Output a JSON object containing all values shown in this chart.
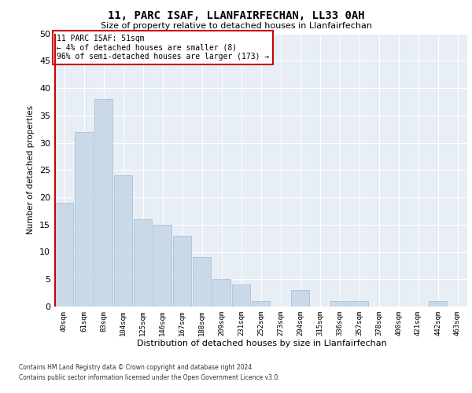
{
  "title": "11, PARC ISAF, LLANFAIRFECHAN, LL33 0AH",
  "subtitle": "Size of property relative to detached houses in Llanfairfechan",
  "xlabel_actual": "Distribution of detached houses by size in Llanfairfechan",
  "ylabel": "Number of detached properties",
  "categories": [
    "40sqm",
    "61sqm",
    "83sqm",
    "104sqm",
    "125sqm",
    "146sqm",
    "167sqm",
    "188sqm",
    "209sqm",
    "231sqm",
    "252sqm",
    "273sqm",
    "294sqm",
    "315sqm",
    "336sqm",
    "357sqm",
    "378sqm",
    "400sqm",
    "421sqm",
    "442sqm",
    "463sqm"
  ],
  "values": [
    19,
    32,
    38,
    24,
    16,
    15,
    13,
    9,
    5,
    4,
    1,
    0,
    3,
    0,
    1,
    1,
    0,
    0,
    0,
    1,
    0
  ],
  "bar_color": "#c9d9e8",
  "bar_edge_color": "#a0b8d0",
  "highlight_line_color": "#cc0000",
  "ylim": [
    0,
    50
  ],
  "yticks": [
    0,
    5,
    10,
    15,
    20,
    25,
    30,
    35,
    40,
    45,
    50
  ],
  "annotation_title": "11 PARC ISAF: 51sqm",
  "annotation_line1": "← 4% of detached houses are smaller (8)",
  "annotation_line2": "96% of semi-detached houses are larger (173) →",
  "annotation_box_color": "#ffffff",
  "annotation_box_edge_color": "#cc0000",
  "footer_line1": "Contains HM Land Registry data © Crown copyright and database right 2024.",
  "footer_line2": "Contains public sector information licensed under the Open Government Licence v3.0.",
  "background_color": "#e8eef5",
  "grid_color": "#ffffff"
}
